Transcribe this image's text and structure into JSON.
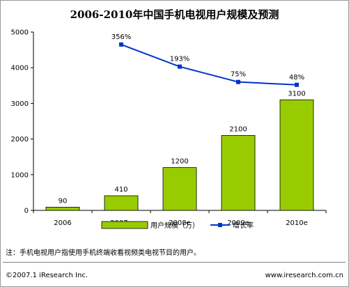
{
  "chart_data": {
    "type": "bar",
    "title": "2006-2010年中国手机电视用户规模及预测",
    "categories": [
      "2006",
      "2007e",
      "2008e",
      "2009e",
      "2010e"
    ],
    "series": [
      {
        "name": "用户规模（万）",
        "kind": "bar",
        "color": "#99cc00",
        "values": [
          90,
          410,
          1200,
          2100,
          3100
        ],
        "labels": [
          "90",
          "410",
          "1200",
          "2100",
          "3100"
        ]
      },
      {
        "name": "增长率",
        "kind": "line",
        "color": "#0033cc",
        "points": [
          {
            "category": "2007e",
            "value": 4650,
            "label": "356%"
          },
          {
            "category": "2008e",
            "value": 4030,
            "label": "193%"
          },
          {
            "category": "2009e",
            "value": 3600,
            "label": "75%"
          },
          {
            "category": "2010e",
            "value": 3520,
            "label": "48%"
          }
        ]
      }
    ],
    "yaxis": {
      "ticks": [
        "0",
        "1000",
        "2000",
        "3000",
        "4000",
        "5000"
      ],
      "ylim": [
        0,
        5000
      ]
    },
    "grid": false,
    "legend": "bottom"
  },
  "note": "注：手机电视用户指使用手机终端收看视频类电视节目的用户。",
  "footer": {
    "left": "©2007.1 iResearch Inc.",
    "right": "www.iresearch.com.cn"
  }
}
